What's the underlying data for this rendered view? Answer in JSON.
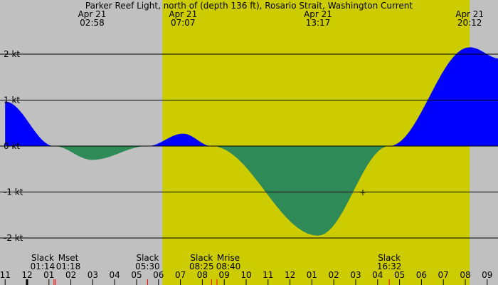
{
  "chart_data": {
    "type": "area",
    "title": "Parker Reef Light, north of (depth 136 ft), Rosario Strait, Washington Current",
    "y_unit": "kt",
    "ylim": [
      -2.25,
      2.5
    ],
    "y_ticks": [
      {
        "v": 2,
        "label": "2 kt"
      },
      {
        "v": 1,
        "label": "1 kt"
      },
      {
        "v": 0,
        "label": "0 kt"
      },
      {
        "v": -1,
        "label": "-1 kt"
      },
      {
        "v": -2,
        "label": "-2 kt"
      }
    ],
    "x_range_hours": [
      -1.0,
      21.6
    ],
    "x_tick_labels": [
      "11",
      "12",
      "01",
      "02",
      "03",
      "04",
      "05",
      "06",
      "07",
      "08",
      "09",
      "10",
      "11",
      "12",
      "01",
      "02",
      "03",
      "04",
      "05",
      "06",
      "07",
      "08",
      "09"
    ],
    "daylight_hours": [
      6.18,
      20.2
    ],
    "points": [
      {
        "t": -1.0,
        "v": 0.97
      },
      {
        "t": 1.23,
        "v": 0
      },
      {
        "t": 2.97,
        "v": -0.3
      },
      {
        "t": 5.5,
        "v": 0
      },
      {
        "t": 7.12,
        "v": 0.27
      },
      {
        "t": 8.42,
        "v": 0
      },
      {
        "t": 13.28,
        "v": -1.95
      },
      {
        "t": 16.53,
        "v": 0
      },
      {
        "t": 20.2,
        "v": 2.15
      },
      {
        "t": 21.6,
        "v": 1.9
      }
    ],
    "extrema_labels": [
      {
        "t": 2.97,
        "date": "Apr 21",
        "time": "02:58"
      },
      {
        "t": 7.12,
        "date": "Apr 21",
        "time": "07:07"
      },
      {
        "t": 13.28,
        "date": "Apr 21",
        "time": "13:17"
      },
      {
        "t": 20.2,
        "date": "Apr 21",
        "time": "20:12"
      }
    ],
    "events": [
      {
        "t": 1.23,
        "label": "Slack",
        "time": "01:14"
      },
      {
        "t": 1.3,
        "label": "Mset",
        "time": "01:18"
      },
      {
        "t": 5.5,
        "label": "Slack",
        "time": "05:30"
      },
      {
        "t": 8.42,
        "label": "Slack",
        "time": "08:25"
      },
      {
        "t": 8.67,
        "label": "Mrise",
        "time": "08:40"
      },
      {
        "t": 16.53,
        "label": "Slack",
        "time": "16:32"
      }
    ],
    "colors": {
      "flood": "#0000ff",
      "ebb": "#2e8b57",
      "day": "#cccc00",
      "night": "#c0c0c0",
      "event_mark": "#ff0000"
    }
  }
}
